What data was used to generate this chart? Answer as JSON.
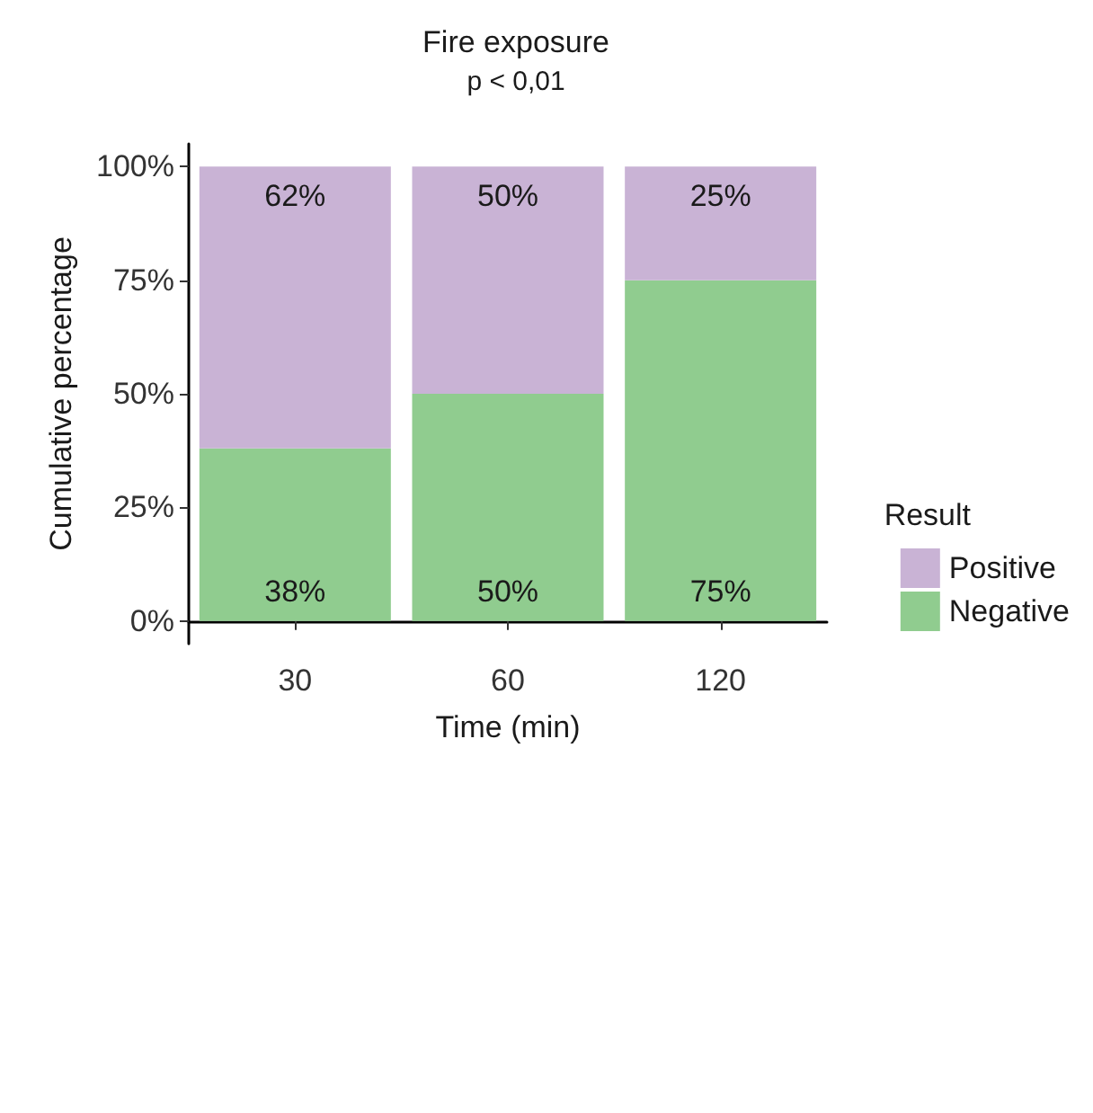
{
  "chart_data": {
    "type": "bar",
    "title": "Fire exposure",
    "subtitle": "p < 0,01",
    "xlabel": "Time (min)",
    "ylabel": "Cumulative percentage",
    "legend_title": "Result",
    "categories": [
      "30",
      "60",
      "120"
    ],
    "series": [
      {
        "name": "Negative",
        "color": "#90cc8f",
        "values": [
          38,
          50,
          75
        ],
        "value_labels": [
          "38%",
          "50%",
          "75%"
        ]
      },
      {
        "name": "Positive",
        "color": "#c9b3d5",
        "values": [
          62,
          50,
          25
        ],
        "value_labels": [
          "62%",
          "50%",
          "25%"
        ]
      }
    ],
    "stacked": true,
    "ylim": [
      -5,
      105
    ],
    "yticks": [
      {
        "value": 0,
        "label": "0%"
      },
      {
        "value": 25,
        "label": "25%"
      },
      {
        "value": 50,
        "label": "50%"
      },
      {
        "value": 75,
        "label": "75%"
      },
      {
        "value": 100,
        "label": "100%"
      }
    ],
    "grid": false,
    "legend": "right"
  }
}
